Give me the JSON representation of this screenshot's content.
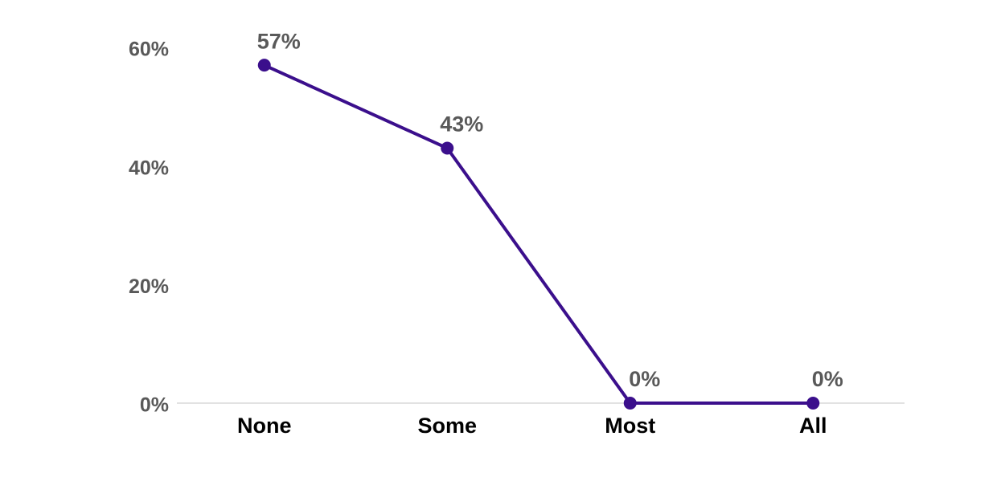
{
  "chart_data": {
    "type": "line",
    "categories": [
      "None",
      "Some",
      "Most",
      "All"
    ],
    "series": [
      {
        "color": "#3b0f8c",
        "values": [
          57,
          43,
          0,
          0
        ],
        "value_labels": [
          "57%",
          "43%",
          "0%",
          "0%"
        ]
      }
    ],
    "ylim": [
      0,
      60
    ],
    "yticks": [
      {
        "value": 0,
        "label": "0%"
      },
      {
        "value": 20,
        "label": "20%"
      },
      {
        "value": 40,
        "label": "40%"
      },
      {
        "value": 60,
        "label": "60%"
      }
    ],
    "grid": false
  }
}
